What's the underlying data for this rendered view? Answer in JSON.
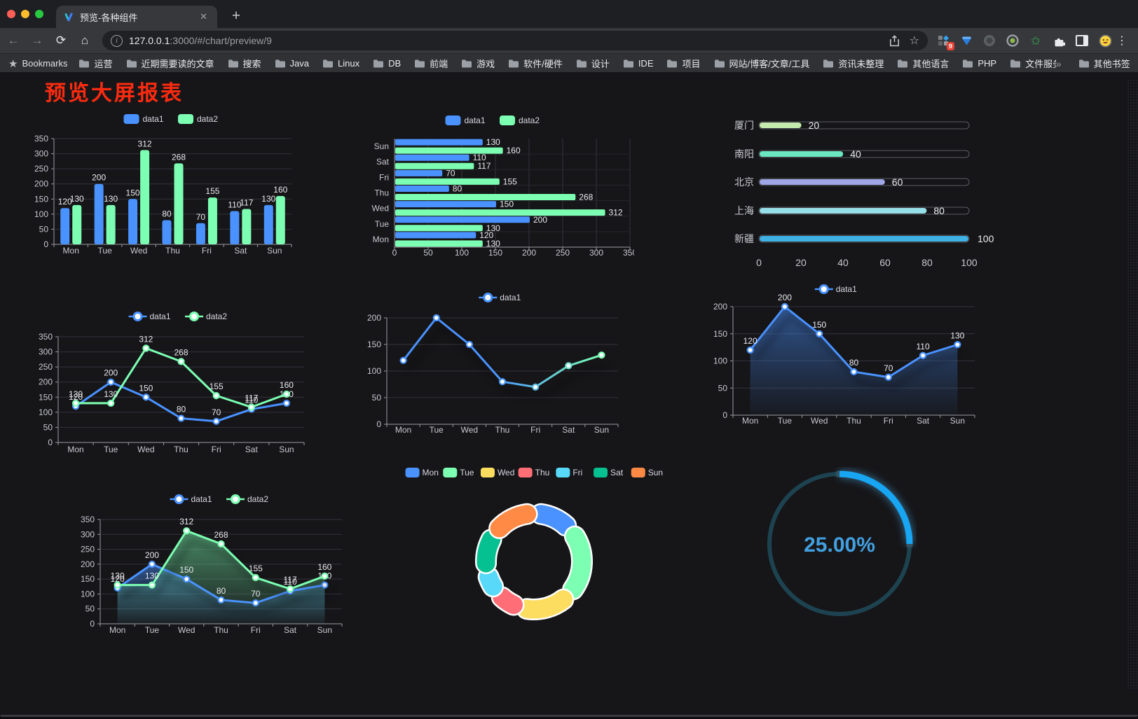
{
  "browser": {
    "tab_title": "预览-各种组件",
    "url_host": "127.0.0.1",
    "url_path": ":3000/#/chart/preview/9",
    "extension_badge": "9",
    "bookmarks_label": "Bookmarks",
    "bookmarks": [
      "运营",
      "近期需要读的文章",
      "搜索",
      "Java",
      "Linux",
      "DB",
      "前端",
      "游戏",
      "软件/硬件",
      "设计",
      "IDE",
      "项目",
      "网站/博客/文章/工具",
      "资讯未整理",
      "其他语言",
      "PHP",
      "文件服务器"
    ],
    "other_bookmarks": "其他书签",
    "icons": {
      "close": "✕",
      "new_tab": "+",
      "back": "←",
      "forward": "→",
      "reload": "⟳",
      "home": "⌂",
      "info": "i",
      "bookmark_star": "☆",
      "bookmarks_bar_star": "★",
      "overflow": "»",
      "kebab": "⋮",
      "green_star": "✩"
    }
  },
  "page": {
    "title": "预览大屏报表",
    "title_color": "#fb2b10"
  },
  "chart_data": [
    {
      "id": "grouped-bar",
      "type": "bar",
      "categories": [
        "Mon",
        "Tue",
        "Wed",
        "Thu",
        "Fri",
        "Sat",
        "Sun"
      ],
      "series": [
        {
          "name": "data1",
          "color": "#4992ff",
          "values": [
            120,
            200,
            150,
            80,
            70,
            110,
            130
          ]
        },
        {
          "name": "data2",
          "color": "#7cffb2",
          "values": [
            130,
            130,
            312,
            268,
            155,
            117,
            160
          ]
        }
      ],
      "ylim": [
        0,
        350
      ],
      "ystep": 50,
      "legend_position": "top",
      "grid": true
    },
    {
      "id": "horizontal-bar",
      "type": "hbar",
      "categories": [
        "Mon",
        "Tue",
        "Wed",
        "Thu",
        "Fri",
        "Sat",
        "Sun"
      ],
      "series": [
        {
          "name": "data1",
          "color": "#4992ff",
          "values": [
            120,
            200,
            150,
            80,
            70,
            110,
            130
          ]
        },
        {
          "name": "data2",
          "color": "#7cffb2",
          "values": [
            130,
            130,
            312,
            268,
            155,
            117,
            160
          ]
        }
      ],
      "xlim": [
        0,
        350
      ],
      "xstep": 50,
      "legend_position": "top",
      "grid": true
    },
    {
      "id": "city-progress",
      "type": "progress",
      "xlim": [
        0,
        100
      ],
      "xticks": [
        0,
        20,
        40,
        60,
        80,
        100
      ],
      "rows": [
        {
          "label": "厦门",
          "value": 20,
          "color": "#c4ebad"
        },
        {
          "label": "南阳",
          "value": 40,
          "color": "#6be6c1"
        },
        {
          "label": "北京",
          "value": 60,
          "color": "#a0a7e6"
        },
        {
          "label": "上海",
          "value": 80,
          "color": "#96dee8"
        },
        {
          "label": "新疆",
          "value": 100,
          "color": "#3fb1e3"
        }
      ]
    },
    {
      "id": "two-line",
      "type": "line",
      "categories": [
        "Mon",
        "Tue",
        "Wed",
        "Thu",
        "Fri",
        "Sat",
        "Sun"
      ],
      "series": [
        {
          "name": "data1",
          "color": "#4992ff",
          "values": [
            120,
            200,
            150,
            80,
            70,
            110,
            130
          ],
          "labels": true
        },
        {
          "name": "data2",
          "color": "#7cffb2",
          "values": [
            130,
            130,
            312,
            268,
            155,
            117,
            160
          ],
          "labels": true
        }
      ],
      "ylim": [
        0,
        350
      ],
      "ystep": 50,
      "legend_position": "top",
      "grid": true
    },
    {
      "id": "gradient-line",
      "type": "line",
      "categories": [
        "Mon",
        "Tue",
        "Wed",
        "Thu",
        "Fri",
        "Sat",
        "Sun"
      ],
      "series": [
        {
          "name": "data1",
          "color": "#4992ff",
          "color_end": "#7cffb2",
          "values": [
            120,
            200,
            150,
            80,
            70,
            110,
            130
          ],
          "labels": false,
          "shadow": true
        }
      ],
      "ylim": [
        0,
        200
      ],
      "ystep": 50,
      "legend_position": "top",
      "grid": true
    },
    {
      "id": "single-area",
      "type": "line",
      "categories": [
        "Mon",
        "Tue",
        "Wed",
        "Thu",
        "Fri",
        "Sat",
        "Sun"
      ],
      "series": [
        {
          "name": "data1",
          "color": "#4992ff",
          "values": [
            120,
            200,
            150,
            80,
            70,
            110,
            130
          ],
          "area": true,
          "labels": true,
          "shadow": true
        }
      ],
      "ylim": [
        0,
        200
      ],
      "ystep": 50,
      "legend_position": "top",
      "grid": true
    },
    {
      "id": "two-area",
      "type": "line",
      "categories": [
        "Mon",
        "Tue",
        "Wed",
        "Thu",
        "Fri",
        "Sat",
        "Sun"
      ],
      "series": [
        {
          "name": "data1",
          "color": "#4992ff",
          "values": [
            120,
            200,
            150,
            80,
            70,
            110,
            130
          ],
          "area": true,
          "labels": true,
          "shadow": true
        },
        {
          "name": "data2",
          "color": "#7cffb2",
          "values": [
            130,
            130,
            312,
            268,
            155,
            117,
            160
          ],
          "area": true,
          "labels": true,
          "shadow": true
        }
      ],
      "ylim": [
        0,
        350
      ],
      "ystep": 50,
      "legend_position": "top",
      "grid": true
    },
    {
      "id": "donut",
      "type": "pie",
      "labels": [
        "Mon",
        "Tue",
        "Wed",
        "Thu",
        "Fri",
        "Sat",
        "Sun"
      ],
      "values": [
        120,
        200,
        150,
        80,
        70,
        110,
        130
      ],
      "colors": [
        "#4992ff",
        "#7cffb2",
        "#fddd60",
        "#ff6e76",
        "#58d9f9",
        "#05c091",
        "#ff8a45"
      ],
      "legend_position": "top"
    },
    {
      "id": "gauge",
      "type": "gauge",
      "value": 25,
      "label": "25.00%",
      "progress_color": "#18a6f2",
      "track_color": "#1d4350",
      "text_color": "#42a0e0"
    }
  ]
}
